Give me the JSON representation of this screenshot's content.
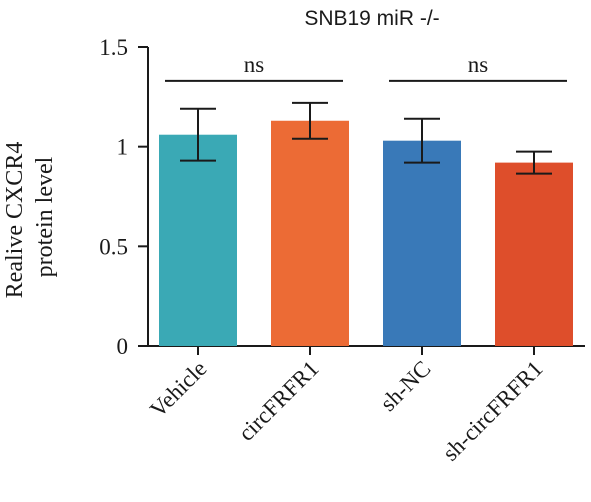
{
  "chart_data": {
    "type": "bar",
    "title": "SNB19 miR -/-",
    "ylabel_lines": [
      "Realive CXCR4",
      "protein level"
    ],
    "xlabel": "",
    "ylim": [
      0,
      1.5
    ],
    "yticks": [
      0,
      0.5,
      1,
      1.5
    ],
    "ytick_labels": [
      "0",
      "0.5",
      "1",
      "1.5"
    ],
    "categories": [
      "Vehicle",
      "circFRFR1",
      "sh-NC",
      "sh-circFRFR1"
    ],
    "values": [
      1.06,
      1.13,
      1.03,
      0.92
    ],
    "errors": [
      0.13,
      0.09,
      0.11,
      0.055
    ],
    "colors": [
      "#3aa9b5",
      "#ec6b35",
      "#3979b8",
      "#de4e2b"
    ],
    "grid": false,
    "significance": [
      {
        "label": "ns",
        "from": 0,
        "to": 1,
        "y": 1.33
      },
      {
        "label": "ns",
        "from": 2,
        "to": 3,
        "y": 1.33
      }
    ]
  }
}
